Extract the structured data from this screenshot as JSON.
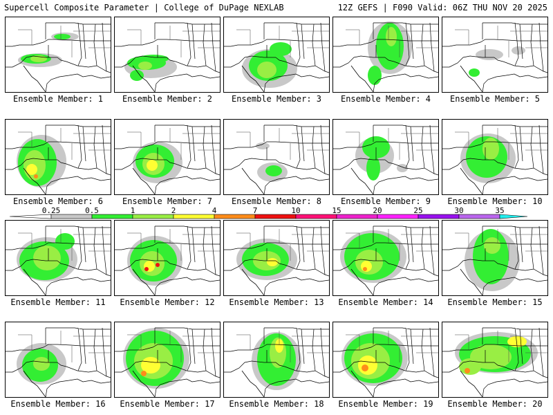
{
  "header": {
    "title_left": "Supercell Composite Parameter | College of DuPage NEXLAB",
    "title_right": "12Z GEFS | F090 Valid: 06Z THU NOV 20 2025"
  },
  "label_prefix": "Ensemble Member: ",
  "members": [
    {
      "id": 1,
      "label": "Ensemble Member: 1",
      "max_level": "1-2"
    },
    {
      "id": 2,
      "label": "Ensemble Member: 2",
      "max_level": "1-2"
    },
    {
      "id": 3,
      "label": "Ensemble Member: 3",
      "max_level": "1-2"
    },
    {
      "id": 4,
      "label": "Ensemble Member: 4",
      "max_level": "1-2"
    },
    {
      "id": 5,
      "label": "Ensemble Member: 5",
      "max_level": "0.5-1"
    },
    {
      "id": 6,
      "label": "Ensemble Member: 6",
      "max_level": "4-7"
    },
    {
      "id": 7,
      "label": "Ensemble Member: 7",
      "max_level": "2-4"
    },
    {
      "id": 8,
      "label": "Ensemble Member: 8",
      "max_level": "1-2"
    },
    {
      "id": 9,
      "label": "Ensemble Member: 9",
      "max_level": "1-2"
    },
    {
      "id": 10,
      "label": "Ensemble Member: 10",
      "max_level": "1-2"
    },
    {
      "id": 11,
      "label": "Ensemble Member: 11",
      "max_level": "1-2"
    },
    {
      "id": 12,
      "label": "Ensemble Member: 12",
      "max_level": "7-10"
    },
    {
      "id": 13,
      "label": "Ensemble Member: 13",
      "max_level": "2-4"
    },
    {
      "id": 14,
      "label": "Ensemble Member: 14",
      "max_level": "4-7"
    },
    {
      "id": 15,
      "label": "Ensemble Member: 15",
      "max_level": "1-2"
    },
    {
      "id": 16,
      "label": "Ensemble Member: 16",
      "max_level": "1-2"
    },
    {
      "id": 17,
      "label": "Ensemble Member: 17",
      "max_level": "4-7"
    },
    {
      "id": 18,
      "label": "Ensemble Member: 18",
      "max_level": "2-4"
    },
    {
      "id": 19,
      "label": "Ensemble Member: 19",
      "max_level": "4-7"
    },
    {
      "id": 20,
      "label": "Ensemble Member: 20",
      "max_level": "4-7"
    }
  ],
  "colorbar": {
    "levels": [
      "0.25",
      "0.5",
      "1",
      "2",
      "4",
      "7",
      "10",
      "15",
      "20",
      "25",
      "30",
      "35"
    ],
    "colors": [
      "#c8c8c8",
      "#33ee33",
      "#99ee44",
      "#ffff33",
      "#ff8c1a",
      "#ee1111",
      "#ff1177",
      "#ee22cc",
      "#ff22ff",
      "#9911ee",
      "#bb66ee",
      "#22eeee"
    ]
  },
  "legend_colors": {
    "gray": "#c8c8c8",
    "green": "#33ee33",
    "lightgreen": "#99ee44",
    "yellow": "#ffff33",
    "orange": "#ff8c1a",
    "red": "#ee1111"
  }
}
